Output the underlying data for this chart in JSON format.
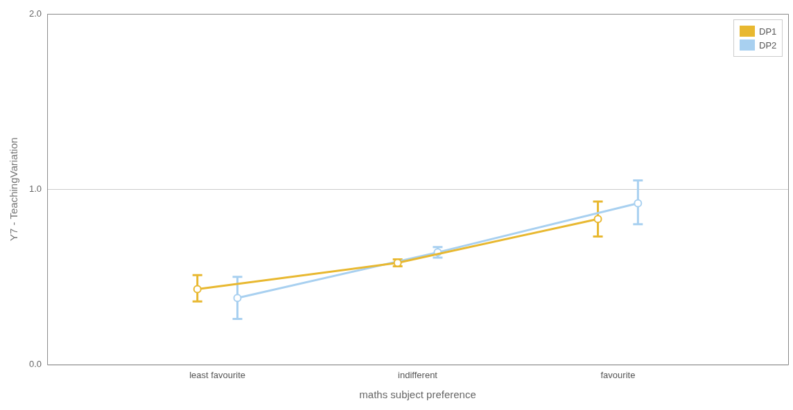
{
  "chart_data": {
    "type": "line",
    "xlabel": "maths subject preference",
    "ylabel": "Y7 - TeachingVariation",
    "categories": [
      "least favourite",
      "indifferent",
      "favourite"
    ],
    "series": [
      {
        "name": "DP1",
        "color": "#e8b830",
        "values": [
          0.43,
          0.58,
          0.83
        ],
        "errors": [
          [
            0.36,
            0.51
          ],
          [
            0.56,
            0.6
          ],
          [
            0.73,
            0.93
          ]
        ]
      },
      {
        "name": "DP2",
        "color": "#a8d0f0",
        "values": [
          0.38,
          0.64,
          0.92
        ],
        "errors": [
          [
            0.26,
            0.5
          ],
          [
            0.61,
            0.67
          ],
          [
            0.8,
            1.05
          ]
        ]
      }
    ],
    "ylim": [
      0,
      2
    ],
    "yticks": [
      {
        "value": 0,
        "label": "0.0"
      },
      {
        "value": 1,
        "label": "1.0"
      },
      {
        "value": 2,
        "label": "2.0"
      }
    ],
    "grid": "y",
    "legend": "top right",
    "marker": "circle",
    "line_style": "solid"
  }
}
